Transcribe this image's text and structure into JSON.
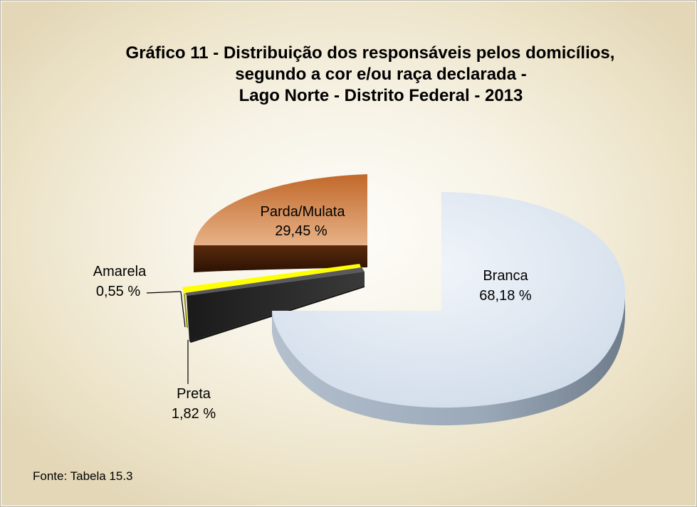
{
  "chart_data": {
    "type": "pie",
    "title": [
      "Gráfico 11 - Distribuição dos responsáveis pelos domicílios,",
      "segundo a cor e/ou raça declarada -",
      "Lago Norte - Distrito Federal - 2013"
    ],
    "slices": [
      {
        "name": "Branca",
        "value": 68.18,
        "value_label": "68,18 %",
        "color": "#dce6f2"
      },
      {
        "name": "Preta",
        "value": 1.82,
        "value_label": "1,82 %",
        "color": "#2b2b2b"
      },
      {
        "name": "Amarela",
        "value": 0.55,
        "value_label": "0,55 %",
        "color": "#ffff00"
      },
      {
        "name": "Parda/Mulata",
        "value": 29.45,
        "value_label": "29,45 %",
        "color": "#b5591f"
      }
    ],
    "style": "3d-exploded"
  },
  "source_note": "Fonte: Tabela 15.3"
}
